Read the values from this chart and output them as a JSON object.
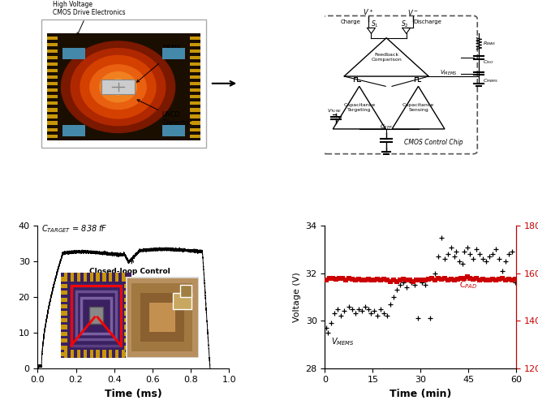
{
  "fig_width": 6.63,
  "fig_height": 5.04,
  "bg_color": "#ffffff",
  "bottom_left": {
    "xlabel": "Time (ms)",
    "xlim": [
      0,
      1.0
    ],
    "ylim": [
      0,
      40
    ],
    "yticks": [
      0,
      10,
      20,
      30,
      40
    ],
    "xticks": [
      0,
      0.2,
      0.4,
      0.6,
      0.8,
      1.0
    ],
    "line_color": "#000000"
  },
  "bottom_right": {
    "xlabel": "Time (min)",
    "ylabel_left": "Voltage (V)",
    "ylabel_right": "Capacitance (fF)",
    "xlim": [
      0,
      60
    ],
    "ylim_left": [
      28,
      34
    ],
    "ylim_right": [
      120,
      180
    ],
    "yticks_left": [
      28,
      30,
      32,
      34
    ],
    "yticks_right": [
      120,
      140,
      160,
      180
    ],
    "xticks": [
      0,
      15,
      30,
      45,
      60
    ],
    "color_vmems": "#000000",
    "color_cpad": "#cc0000",
    "vmems_x": [
      0.5,
      1.0,
      2.0,
      3.0,
      4.0,
      5.0,
      6.0,
      7.5,
      8.5,
      9.5,
      10.5,
      11.5,
      12.5,
      13.5,
      14.5,
      15.5,
      16.5,
      17.5,
      18.5,
      19.5,
      20.5,
      21.5,
      22.5,
      23.5,
      24.5,
      25.5,
      27.0,
      28.0,
      29.0,
      30.5,
      31.5,
      33.0,
      34.5,
      35.5,
      36.5,
      37.5,
      38.5,
      39.5,
      40.5,
      41.0,
      42.0,
      43.0,
      43.5,
      44.5,
      45.5,
      46.5,
      47.5,
      48.5,
      49.5,
      50.5,
      51.5,
      52.5,
      53.5,
      54.5,
      55.5,
      56.5,
      57.5,
      58.5,
      59.5
    ],
    "vmems_y": [
      29.7,
      29.5,
      29.9,
      30.3,
      30.5,
      30.2,
      30.4,
      30.6,
      30.5,
      30.3,
      30.5,
      30.4,
      30.6,
      30.5,
      30.3,
      30.4,
      30.2,
      30.5,
      30.3,
      30.2,
      30.7,
      31.0,
      31.3,
      31.5,
      31.6,
      31.4,
      31.6,
      31.5,
      30.1,
      31.6,
      31.5,
      30.1,
      32.0,
      32.7,
      33.5,
      32.6,
      32.8,
      33.1,
      32.7,
      32.9,
      32.5,
      32.4,
      32.9,
      33.1,
      32.8,
      32.6,
      33.0,
      32.8,
      32.6,
      32.5,
      32.7,
      32.8,
      33.0,
      32.6,
      32.1,
      32.5,
      32.8,
      32.9,
      31.6
    ],
    "cpad_x": [
      0.5,
      1.5,
      2.5,
      3.5,
      4.5,
      5.5,
      6.5,
      7.5,
      8.5,
      9.5,
      10.5,
      11.5,
      12.5,
      13.5,
      14.5,
      15.5,
      16.5,
      17.5,
      18.5,
      19.5,
      20.5,
      21.5,
      22.5,
      23.5,
      24.5,
      25.5,
      26.5,
      27.5,
      28.5,
      29.5,
      30.5,
      31.5,
      32.5,
      33.5,
      34.5,
      35.5,
      36.5,
      37.5,
      38.5,
      39.5,
      40.5,
      41.5,
      42.5,
      43.5,
      44.5,
      45.5,
      46.5,
      47.5,
      48.5,
      49.5,
      50.5,
      51.5,
      52.5,
      53.5,
      54.5,
      55.5,
      56.5,
      57.5,
      58.5,
      59.5
    ],
    "cpad_y": [
      157,
      158,
      158,
      157.5,
      158,
      158,
      157,
      158,
      157.5,
      157,
      157.5,
      157,
      157,
      157.5,
      157,
      157,
      157.5,
      157,
      157.5,
      157,
      156.5,
      157,
      156.5,
      157,
      157.5,
      157,
      157,
      156.5,
      157,
      157,
      157,
      157,
      157.5,
      158,
      157,
      158,
      157.5,
      158,
      157,
      157.5,
      157,
      157.5,
      158,
      158,
      158.5,
      158,
      157.5,
      158,
      157,
      157.5,
      157,
      157,
      157.5,
      157,
      157.5,
      158,
      157,
      157.5,
      157,
      157.5
    ]
  }
}
